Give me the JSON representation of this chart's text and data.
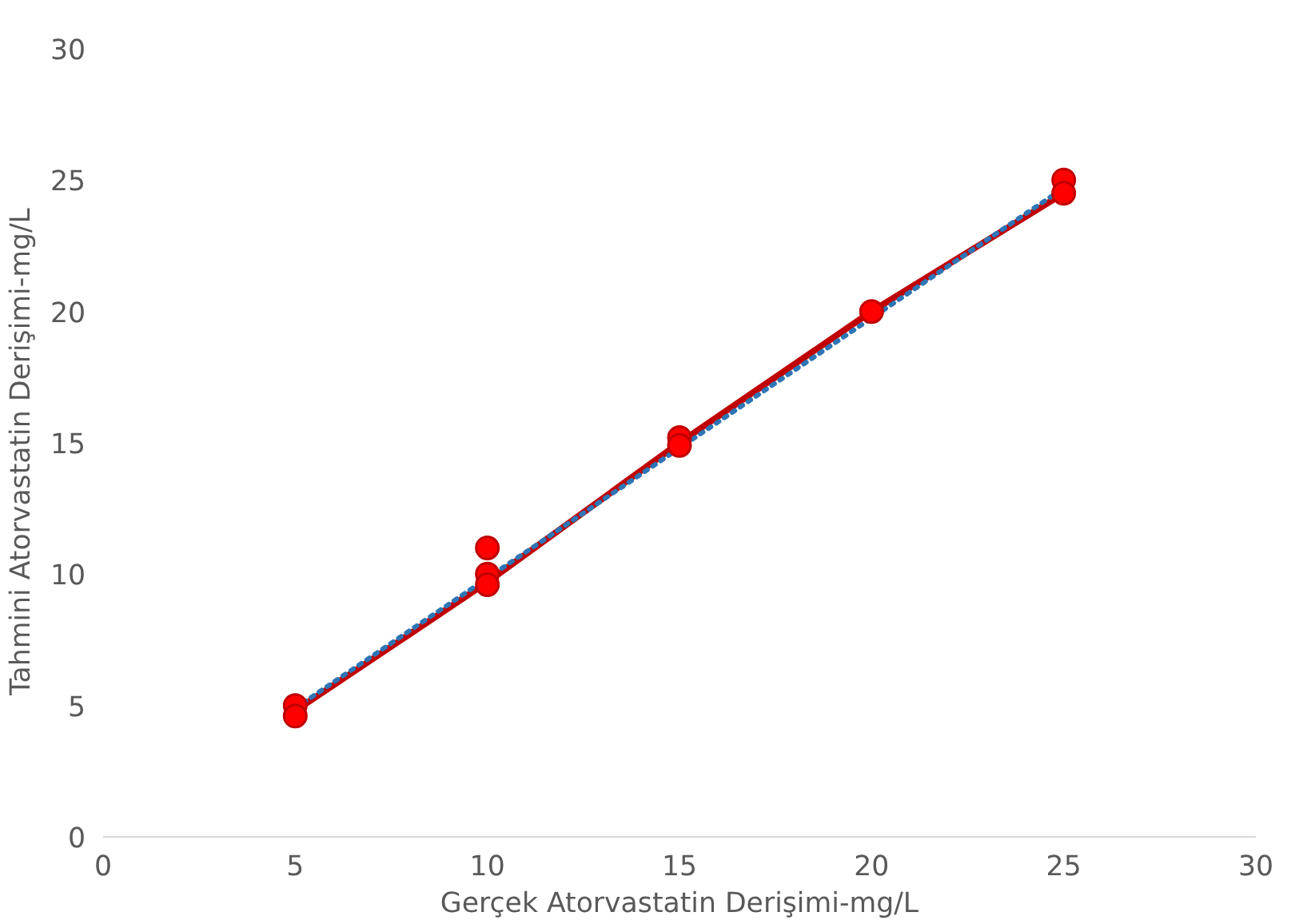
{
  "chart_data": {
    "type": "scatter",
    "xlabel": "Gerçek Atorvastatin Derişimi-mg/L",
    "ylabel": "Tahmini  Atorvastatin  Derişimi-mg/L",
    "xlim": [
      0,
      30
    ],
    "ylim": [
      0,
      30
    ],
    "xticks": [
      0,
      5,
      10,
      15,
      20,
      25,
      30
    ],
    "yticks": [
      0,
      5,
      10,
      15,
      20,
      25,
      30
    ],
    "grid": false,
    "series": [
      {
        "type": "line",
        "color": "#c00000",
        "x": [
          5,
          10,
          15,
          20,
          25
        ],
        "values": [
          4.8,
          9.7,
          15.0,
          20.0,
          24.5
        ],
        "line_style": "solid"
      },
      {
        "type": "line",
        "color": "#2e75b6",
        "x": [
          5,
          25
        ],
        "values": [
          4.9,
          24.7
        ],
        "line_style": "dotted"
      },
      {
        "color": "#ff0000",
        "x": [
          5,
          5,
          10,
          10,
          10,
          15,
          15,
          20,
          25,
          25
        ],
        "values": [
          5.0,
          4.6,
          11.0,
          10.0,
          9.6,
          15.2,
          14.9,
          20.0,
          25.0,
          24.5
        ],
        "marker": "circle"
      }
    ]
  }
}
